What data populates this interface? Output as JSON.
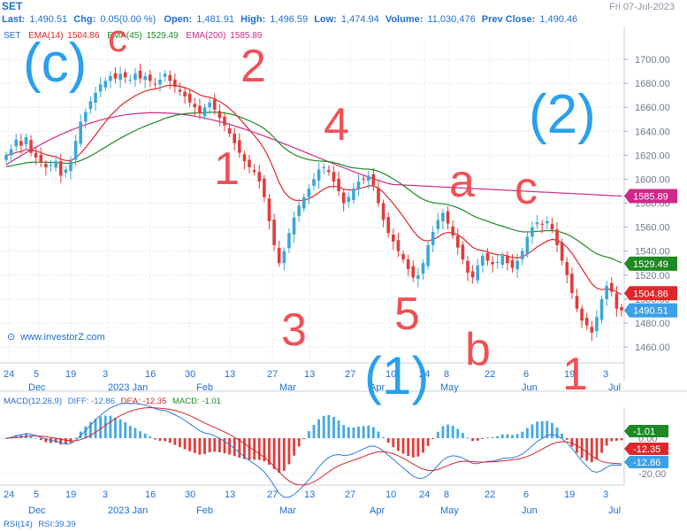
{
  "header": {
    "symbol": "SET",
    "date": "Fri 07-Jul-2023",
    "last_label": "Last:",
    "last_value": "1,490.51",
    "chg_label": "Chg:",
    "chg_value": "0.05(0.00 %)",
    "open_label": "Open:",
    "open_value": "1,481.91",
    "high_label": "High:",
    "high_value": "1,496.59",
    "low_label": "Low:",
    "low_value": "1,474.94",
    "volume_label": "Volume:",
    "volume_value": "11,030,476",
    "prev_label": "Prev Close:",
    "prev_value": "1,490.46"
  },
  "legend": {
    "symbol": "SET",
    "ema14_label": "EMA(14)",
    "ema14_value": "1504.86",
    "ema45_label": "EMA(45)",
    "ema45_value": "1529.49",
    "ema200_label": "EMA(200)",
    "ema200_value": "1585.89"
  },
  "watermark": "www.investorZ.com",
  "colors": {
    "accent": "#1f6fd0",
    "up_candle": "#3aa7d8",
    "down_candle": "#e23b3b",
    "ema14": "#e0262b",
    "ema45": "#1d8a23",
    "ema200": "#d0288a",
    "macd_pos": "#45a8e2",
    "macd_neg": "#e23b3b",
    "diff_line": "#2a7be0",
    "dea_line": "#d8222c",
    "annotation_red": "#f0484d",
    "annotation_blue": "#1e9bf0"
  },
  "annotations": [
    {
      "text": "(c)",
      "color": "blue"
    },
    {
      "text": "c",
      "color": "red"
    },
    {
      "text": "2",
      "color": "red"
    },
    {
      "text": "1",
      "color": "red"
    },
    {
      "text": "4",
      "color": "red"
    },
    {
      "text": "3",
      "color": "red"
    },
    {
      "text": "5",
      "color": "red"
    },
    {
      "text": "(1)",
      "color": "blue"
    },
    {
      "text": "a",
      "color": "red"
    },
    {
      "text": "b",
      "color": "red"
    },
    {
      "text": "c",
      "color": "red"
    },
    {
      "text": "(2)",
      "color": "blue"
    },
    {
      "text": "1",
      "color": "red"
    }
  ],
  "price_tags": [
    {
      "value": "1585.89",
      "series": "ema200"
    },
    {
      "value": "1529.49",
      "series": "ema45"
    },
    {
      "value": "1504.86",
      "series": "ema14"
    },
    {
      "value": "1490.51",
      "series": "last"
    }
  ],
  "macd_panel": {
    "label": "MACD(12,26,9)",
    "diff_label": "DIFF:",
    "diff_value": "-12.86",
    "dea_label": "DEA:",
    "dea_value": "-12.35",
    "macd_label": "MACD:",
    "macd_value": "-1.01",
    "tags": [
      {
        "value": "-1.01",
        "series": "macd"
      },
      {
        "value": "-12.35",
        "series": "dea"
      },
      {
        "value": "-12.86",
        "series": "diff"
      }
    ]
  },
  "rsi_panel": {
    "label": "RSI(14)",
    "value_text": "RSI:39.39"
  },
  "chart_data": {
    "type": "candlestick",
    "ylim": [
      1440,
      1710
    ],
    "y_ticks": [
      "1700.00",
      "1680.00",
      "1660.00",
      "1640.00",
      "1620.00",
      "1600.00",
      "1580.00",
      "1560.00",
      "1540.00",
      "1520.00",
      "1500.00",
      "1480.00",
      "1460.00"
    ],
    "x_day_ticks": [
      "24",
      "5",
      "19",
      "3",
      "16",
      "30",
      "13",
      "27",
      "13",
      "27",
      "10",
      "24",
      "8",
      "22",
      "6",
      "19",
      "3"
    ],
    "x_month_labels": [
      "Dec",
      "2023 Jan",
      "Feb",
      "Mar",
      "Apr",
      "May",
      "Jun",
      "Jul"
    ],
    "close": [
      1620,
      1625,
      1633,
      1628,
      1635,
      1622,
      1618,
      1614,
      1610,
      1612,
      1615,
      1603,
      1608,
      1615,
      1632,
      1648,
      1656,
      1665,
      1672,
      1679,
      1682,
      1686,
      1684,
      1688,
      1685,
      1683,
      1688,
      1684,
      1686,
      1682,
      1679,
      1683,
      1688,
      1682,
      1677,
      1673,
      1669,
      1664,
      1660,
      1655,
      1660,
      1664,
      1658,
      1651,
      1645,
      1638,
      1630,
      1622,
      1615,
      1610,
      1606,
      1598,
      1585,
      1565,
      1545,
      1530,
      1540,
      1555,
      1568,
      1578,
      1585,
      1592,
      1600,
      1608,
      1610,
      1606,
      1598,
      1590,
      1580,
      1585,
      1592,
      1598,
      1600,
      1603,
      1595,
      1580,
      1566,
      1555,
      1548,
      1540,
      1533,
      1525,
      1518,
      1520,
      1530,
      1545,
      1556,
      1566,
      1572,
      1563,
      1553,
      1543,
      1533,
      1522,
      1518,
      1528,
      1536,
      1532,
      1529,
      1531,
      1536,
      1530,
      1526,
      1532,
      1540,
      1552,
      1560,
      1564,
      1562,
      1565,
      1558,
      1545,
      1532,
      1520,
      1505,
      1492,
      1482,
      1478,
      1472,
      1485,
      1500,
      1511,
      1506,
      1492,
      1490.51
    ],
    "ema14_last": 1504.86,
    "ema45_last": 1529.49,
    "ema200_last": 1585.89,
    "macd_ylim": [
      -30,
      25
    ],
    "macd_ticks": [
      "0.00",
      "-20.00"
    ],
    "diff_last": -12.86,
    "dea_last": -12.35,
    "macd_last": -1.01
  }
}
